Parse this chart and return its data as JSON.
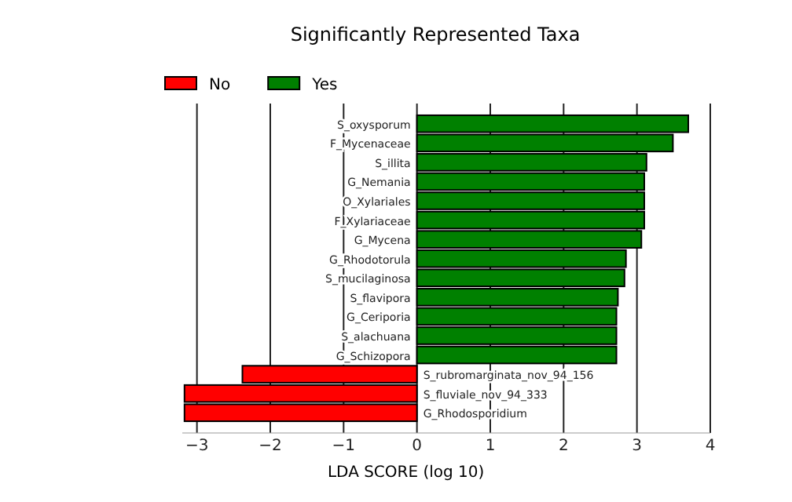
{
  "chart_data": {
    "type": "bar",
    "orientation": "horizontal",
    "title": "Significantly Represented Taxa",
    "xlabel": "LDA SCORE (log 10)",
    "categories": [
      "S_oxysporum",
      "F_Mycenaceae",
      "S_illita",
      "G_Nemania",
      "O_Xylariales",
      "F_Xylariaceae",
      "G_Mycena",
      "G_Rhodotorula",
      "S_mucilaginosa",
      "S_flavipora",
      "G_Ceriporia",
      "S_alachuana",
      "G_Schizopora",
      "S_rubromarginata_nov_94_156",
      "S_fluviale_nov_94_333",
      "G_Rhodosporidium"
    ],
    "series": [
      {
        "name": "No",
        "color": "#ff0000",
        "values": [
          null,
          null,
          null,
          null,
          null,
          null,
          null,
          null,
          null,
          null,
          null,
          null,
          null,
          -2.38,
          -3.17,
          -3.17
        ]
      },
      {
        "name": "Yes",
        "color": "#008000",
        "values": [
          3.7,
          3.49,
          3.13,
          3.1,
          3.1,
          3.1,
          3.06,
          2.85,
          2.83,
          2.74,
          2.72,
          2.72,
          2.72,
          null,
          null,
          null
        ]
      }
    ],
    "xlim": [
      -3.2,
      4
    ],
    "xticks": [
      {
        "value": -3,
        "label": "−3"
      },
      {
        "value": -2,
        "label": "−2"
      },
      {
        "value": -1,
        "label": "−1"
      },
      0,
      1,
      2,
      3,
      4
    ],
    "grid": "x",
    "legend": "top left"
  }
}
